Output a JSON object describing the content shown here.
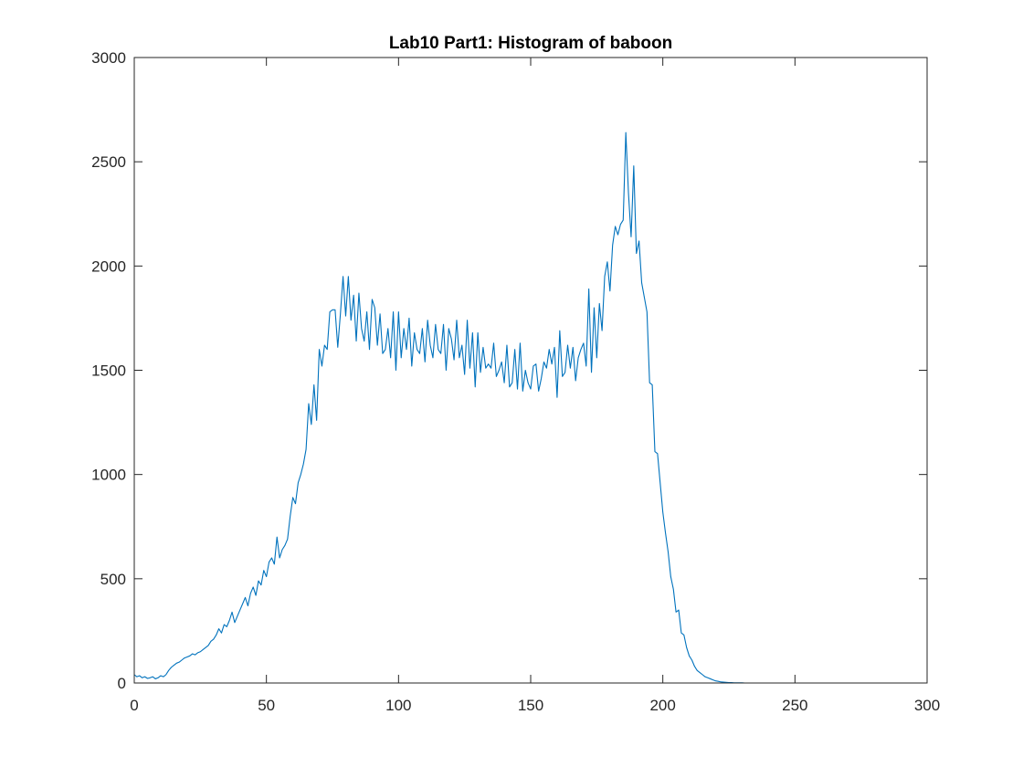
{
  "chart_data": {
    "type": "line",
    "title": "Lab10 Part1: Histogram of baboon",
    "xlabel": "",
    "ylabel": "",
    "xlim": [
      0,
      300
    ],
    "ylim": [
      0,
      3000
    ],
    "xticks": [
      "0",
      "50",
      "100",
      "150",
      "200",
      "250",
      "300"
    ],
    "yticks": [
      "0",
      "500",
      "1000",
      "1500",
      "2000",
      "2500",
      "3000"
    ],
    "grid": false,
    "legend": "none",
    "series_color": "#0072BD",
    "series": [
      {
        "values": [
          40,
          30,
          35,
          25,
          30,
          22,
          25,
          30,
          20,
          25,
          35,
          30,
          40,
          60,
          75,
          85,
          95,
          100,
          110,
          120,
          125,
          130,
          140,
          135,
          145,
          150,
          160,
          170,
          180,
          200,
          210,
          230,
          260,
          240,
          280,
          270,
          300,
          340,
          290,
          320,
          350,
          380,
          410,
          370,
          430,
          460,
          420,
          490,
          470,
          540,
          510,
          580,
          600,
          570,
          700,
          600,
          640,
          660,
          690,
          800,
          890,
          860,
          960,
          1000,
          1050,
          1120,
          1340,
          1240,
          1430,
          1260,
          1600,
          1520,
          1620,
          1600,
          1780,
          1790,
          1790,
          1610,
          1770,
          1950,
          1760,
          1950,
          1740,
          1860,
          1640,
          1870,
          1700,
          1640,
          1780,
          1600,
          1840,
          1800,
          1620,
          1770,
          1580,
          1600,
          1700,
          1560,
          1780,
          1500,
          1780,
          1560,
          1700,
          1600,
          1750,
          1520,
          1680,
          1600,
          1580,
          1700,
          1540,
          1740,
          1620,
          1560,
          1720,
          1600,
          1580,
          1720,
          1500,
          1700,
          1650,
          1550,
          1740,
          1560,
          1620,
          1480,
          1740,
          1510,
          1680,
          1420,
          1680,
          1490,
          1610,
          1510,
          1530,
          1510,
          1630,
          1470,
          1500,
          1540,
          1440,
          1620,
          1420,
          1440,
          1600,
          1410,
          1630,
          1400,
          1500,
          1440,
          1410,
          1520,
          1530,
          1400,
          1460,
          1540,
          1510,
          1600,
          1530,
          1610,
          1370,
          1690,
          1470,
          1490,
          1620,
          1510,
          1610,
          1450,
          1560,
          1600,
          1630,
          1520,
          1890,
          1490,
          1800,
          1560,
          1820,
          1690,
          1950,
          2020,
          1880,
          2100,
          2190,
          2150,
          2200,
          2220,
          2640,
          2350,
          2140,
          2480,
          2060,
          2120,
          1920,
          1850,
          1780,
          1440,
          1430,
          1110,
          1100,
          960,
          820,
          720,
          630,
          510,
          450,
          340,
          350,
          240,
          230,
          170,
          130,
          110,
          80,
          60,
          50,
          40,
          30,
          25,
          20,
          15,
          10,
          8,
          5,
          4,
          3,
          2,
          2,
          1,
          1,
          1,
          1,
          0,
          0,
          0,
          0,
          0,
          0,
          0,
          0,
          0,
          0,
          0,
          0,
          0,
          0,
          0,
          0,
          0,
          0,
          0,
          0,
          0,
          0,
          0,
          0,
          0
        ]
      }
    ]
  }
}
